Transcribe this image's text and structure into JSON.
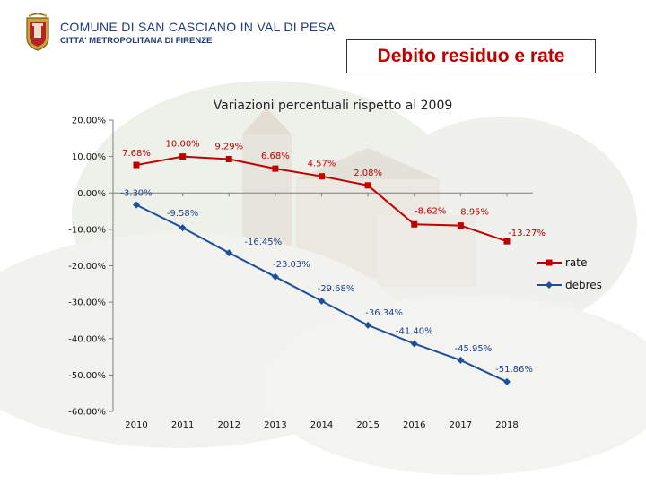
{
  "header": {
    "municipality": "COMUNE DI SAN CASCIANO IN VAL DI PESA",
    "metro_city": "CITTA' METROPOLITANA DI FIRENZE",
    "slide_title": "Debito residuo e rate"
  },
  "colors": {
    "rate": "#c00000",
    "debt": "#1f4e9a",
    "title": "#c00000"
  },
  "chart_data": {
    "type": "line",
    "title": "Variazioni percentuali rispetto al 2009",
    "categories": [
      "2010",
      "2011",
      "2012",
      "2013",
      "2014",
      "2015",
      "2016",
      "2017",
      "2018"
    ],
    "y_ticks": [
      "20.00%",
      "10.00%",
      "0.00%",
      "-10.00%",
      "-20.00%",
      "-30.00%",
      "-40.00%",
      "-50.00%",
      "-60.00%"
    ],
    "ylim": [
      -60,
      20
    ],
    "xlabel": "",
    "ylabel": "",
    "legend_position": "right",
    "series": [
      {
        "name": "rate",
        "values": [
          7.68,
          10.0,
          9.29,
          6.68,
          4.57,
          2.08,
          -8.62,
          -8.95,
          -13.27
        ],
        "labels": [
          "7.68%",
          "10.00%",
          "9.29%",
          "6.68%",
          "4.57%",
          "2.08%",
          "-8.62%",
          "-8.95%",
          "-13.27%"
        ]
      },
      {
        "name": "debres",
        "values": [
          -3.3,
          -9.58,
          -16.45,
          -23.03,
          -29.68,
          -36.34,
          -41.4,
          -45.95,
          -51.86
        ],
        "labels": [
          "-3.30%",
          "-9.58%",
          "-16.45%",
          "-23.03%",
          "-29.68%",
          "-36.34%",
          "-41.40%",
          "-45.95%",
          "-51.86%"
        ]
      }
    ]
  }
}
